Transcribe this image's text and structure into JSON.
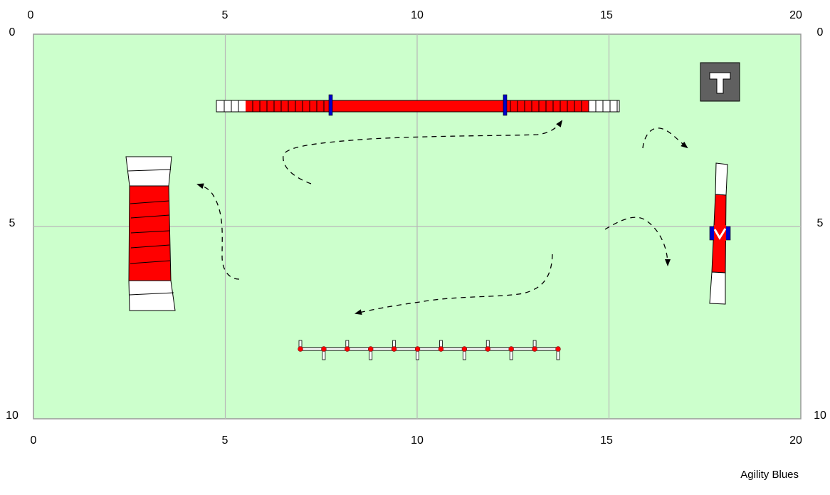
{
  "x_axis": {
    "ticks": [
      "0",
      "5",
      "10",
      "15",
      "20"
    ]
  },
  "y_axis": {
    "ticks": [
      "0",
      "5",
      "10"
    ]
  },
  "colors": {
    "field": "#ccffcc",
    "grid": "#b8b8b8",
    "equipment_red": "#ff0000",
    "contact_white": "#ffffff",
    "marker_blue": "#0000cc",
    "table_gray": "#606060"
  },
  "equipment": [
    {
      "name": "dog-walk",
      "icon": "dog-walk-icon"
    },
    {
      "name": "a-frame",
      "icon": "a-frame-icon"
    },
    {
      "name": "see-saw",
      "icon": "see-saw-icon"
    },
    {
      "name": "weave-poles",
      "icon": "weave-poles-icon",
      "poles": 12
    },
    {
      "name": "table",
      "icon": "table-icon",
      "label": "T"
    }
  ],
  "footer": {
    "credit": "Agility Blues"
  }
}
